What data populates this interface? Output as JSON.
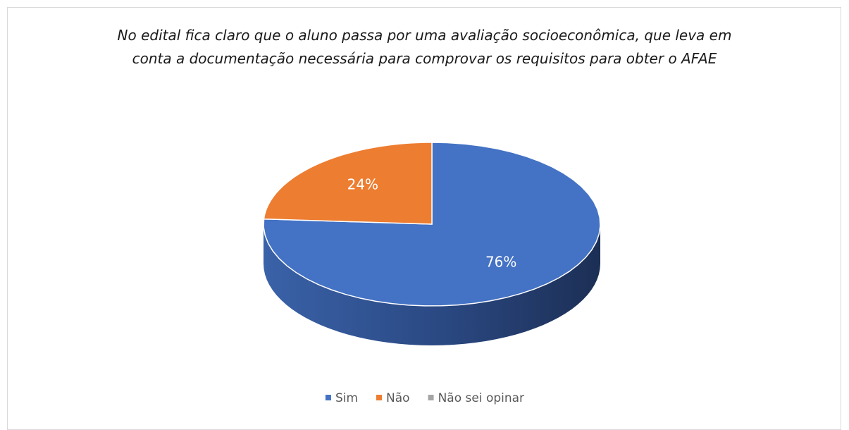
{
  "chart_data": {
    "type": "pie3d",
    "title": "No edital fica claro que o aluno passa por uma avaliação socioeconômica, que leva em conta a documentação necessária para comprovar os requisitos para obter o AFAE",
    "categories": [
      "Sim",
      "Não",
      "Não sei opinar"
    ],
    "values": [
      76,
      24,
      0
    ],
    "value_labels": [
      "76%",
      "24%",
      null
    ],
    "colors": [
      "#4472c4",
      "#ed7d31",
      "#a5a5a5"
    ],
    "legend": "bottom"
  }
}
